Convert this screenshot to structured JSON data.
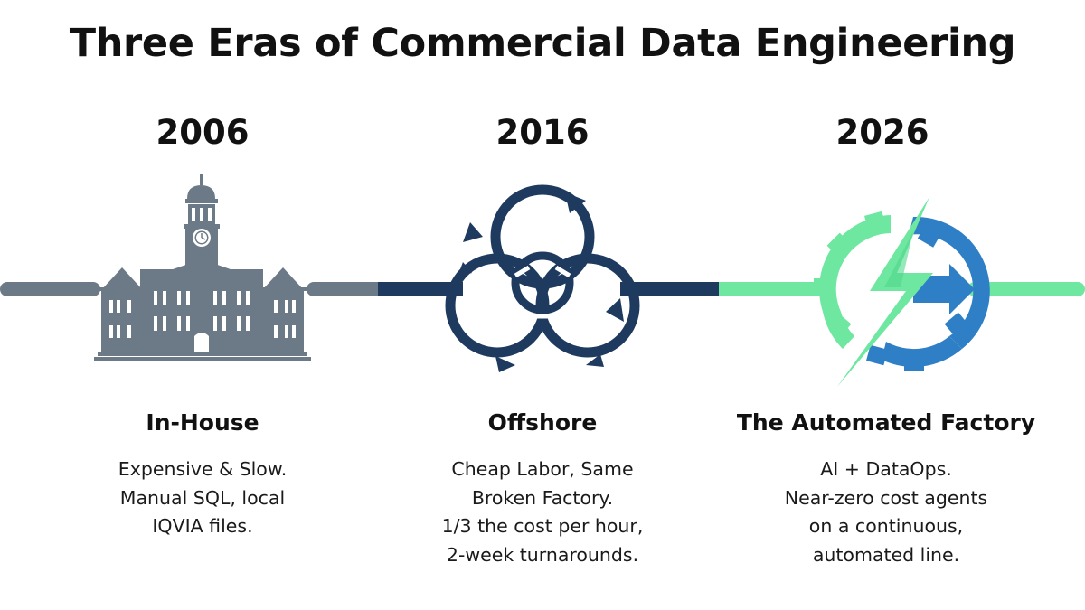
{
  "title": "Three Eras of Commercial Data Engineering",
  "colors": {
    "era1": "#6b7a86",
    "era2": "#1e3a5f",
    "era3_green": "#6ee7a0",
    "era3_blue": "#2f7fc7"
  },
  "eras": [
    {
      "year": "2006",
      "name": "In-House",
      "icon": "building-icon",
      "description": [
        "Expensive & Slow.",
        "Manual SQL, local",
        "IQVIA files."
      ]
    },
    {
      "year": "2016",
      "name": "Offshore",
      "icon": "cycle-arrows-icon",
      "description": [
        "Cheap Labor, Same",
        "Broken Factory.",
        "1/3 the cost per hour,",
        "2-week turnarounds."
      ]
    },
    {
      "year": "2026",
      "name": "The Automated Factory",
      "icon": "gear-lightning-icon",
      "description": [
        "AI + DataOps.",
        "Near-zero cost agents",
        "on a continuous,",
        "automated line."
      ]
    }
  ]
}
